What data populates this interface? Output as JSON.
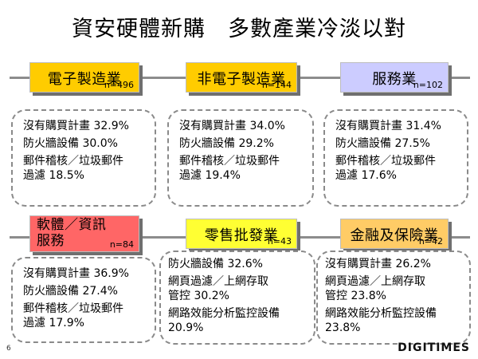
{
  "title": "資安硬體新購　多數產業冷淡以對",
  "colors": {
    "yellow": "#ffcc00",
    "lavender": "#ccccff",
    "salmon": "#ff6666",
    "bright_yellow": "#ffff33",
    "peach": "#ffcc66",
    "line": "#8c8c8c"
  },
  "panels": [
    {
      "category": "電子製造業",
      "n": "n=496",
      "lines": [
        "沒有購買計畫 32.9%",
        "防火牆設備 30.0%",
        "郵件稽核／垃圾郵件",
        "過濾 18.5%"
      ]
    },
    {
      "category": "非電子製造業",
      "n": "n=144",
      "lines": [
        "沒有購買計畫 34.0%",
        "防火牆設備 29.2%",
        "郵件稽核／垃圾郵件",
        "過濾 19.4%"
      ]
    },
    {
      "category": "服務業",
      "n": "n=102",
      "lines": [
        "沒有購買計畫 31.4%",
        "防火牆設備 27.5%",
        "郵件稽核／垃圾郵件",
        "過濾 17.6%"
      ]
    },
    {
      "category_line1": "軟體／資訊",
      "category_line2": "服務",
      "n": "n=84",
      "lines": [
        "沒有購買計畫 36.9%",
        "防火牆設備 27.4%",
        "郵件稽核／垃圾郵件",
        "過濾 17.9%"
      ]
    },
    {
      "category": "零售批發業",
      "n": "n=43",
      "lines": [
        "防火牆設備 32.6%",
        "網頁過濾／上網存取",
        "管控 30.2%",
        "網路效能分析監控設備",
        "20.9%"
      ]
    },
    {
      "category": "金融及保險業",
      "n": "n=42",
      "lines": [
        "沒有購買計畫 26.2%",
        "網頁過濾／上網存取",
        "管控 23.8%",
        "網路效能分析監控設備",
        "23.8%"
      ]
    }
  ],
  "page_number": "6",
  "logo": "DIGITIMES"
}
